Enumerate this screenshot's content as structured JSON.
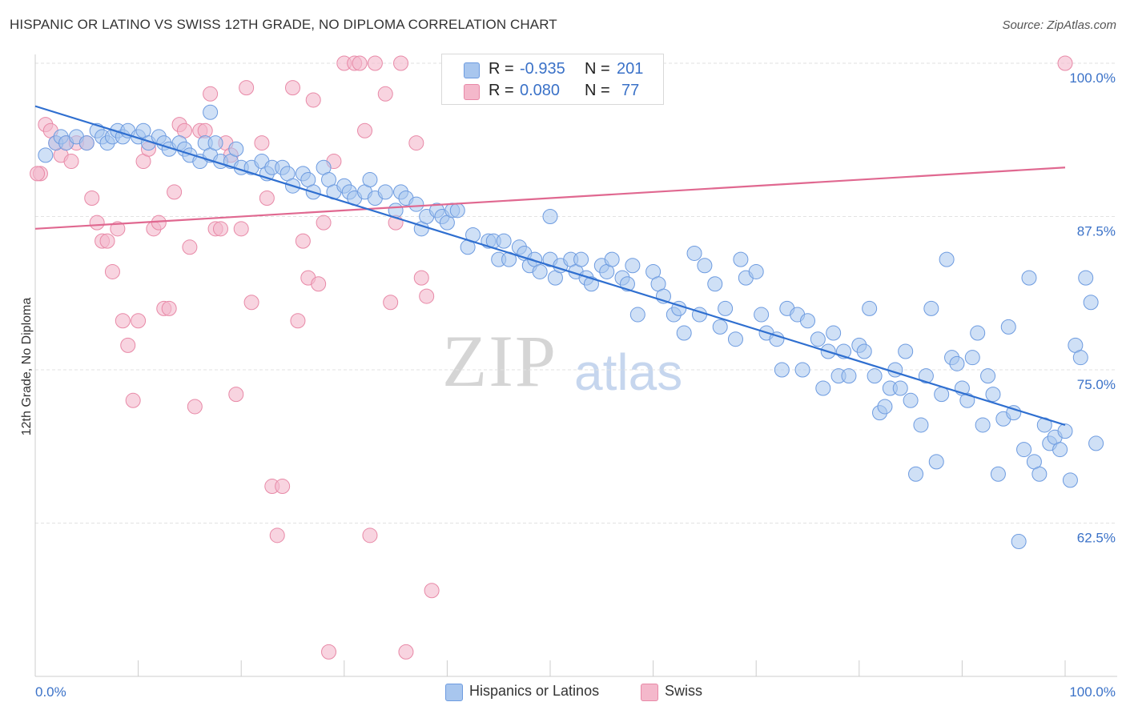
{
  "title": "HISPANIC OR LATINO VS SWISS 12TH GRADE, NO DIPLOMA CORRELATION CHART",
  "source": "Source: ZipAtlas.com",
  "watermark": {
    "zip": "ZIP",
    "atlas": "atlas"
  },
  "legend": {
    "rows": [
      {
        "r_label": "R =",
        "r_value": "-0.935",
        "n_label": "N =",
        "n_value": "201"
      },
      {
        "r_label": "R =",
        "r_value": "0.080",
        "n_label": "N =",
        "n_value": "77"
      }
    ]
  },
  "bottom_legend": {
    "series1": "Hispanics or Latinos",
    "series2": "Swiss"
  },
  "colors": {
    "blue_fill": "#a8c6ee",
    "blue_stroke": "#6d9be0",
    "blue_line": "#2f6fd0",
    "pink_fill": "#f4b8cb",
    "pink_stroke": "#e889a7",
    "pink_line": "#e06890",
    "tick_text": "#3b72c8",
    "grid": "#e2e2e2"
  },
  "chart_data": {
    "type": "scatter",
    "title": "HISPANIC OR LATINO VS SWISS 12TH GRADE, NO DIPLOMA CORRELATION CHART",
    "xlabel": "",
    "ylabel": "12th Grade, No Diploma",
    "xlim": [
      0,
      100
    ],
    "ylim": [
      50,
      100
    ],
    "x_tick_labels": [
      "0.0%",
      "100.0%"
    ],
    "y_ticks": [
      62.5,
      75.0,
      87.5,
      100.0
    ],
    "y_tick_labels": [
      "62.5%",
      "75.0%",
      "87.5%",
      "100.0%"
    ],
    "grid": true,
    "legend_position": "top-center",
    "series": [
      {
        "name": "Hispanics or Latinos",
        "color": "#a8c6ee",
        "trend": {
          "x": [
            0,
            100
          ],
          "y": [
            96.5,
            70.5
          ]
        },
        "points": [
          [
            1,
            92.5
          ],
          [
            2,
            93.5
          ],
          [
            2.5,
            94
          ],
          [
            3,
            93.5
          ],
          [
            4,
            94
          ],
          [
            5,
            93.5
          ],
          [
            6,
            94.5
          ],
          [
            6.5,
            94
          ],
          [
            7,
            93.5
          ],
          [
            7.5,
            94
          ],
          [
            8,
            94.5
          ],
          [
            8.5,
            94
          ],
          [
            9,
            94.5
          ],
          [
            10,
            94
          ],
          [
            10.5,
            94.5
          ],
          [
            11,
            93.5
          ],
          [
            12,
            94
          ],
          [
            12.5,
            93.5
          ],
          [
            13,
            93
          ],
          [
            14,
            93.5
          ],
          [
            14.5,
            93
          ],
          [
            15,
            92.5
          ],
          [
            16,
            92
          ],
          [
            16.5,
            93.5
          ],
          [
            17,
            92.5
          ],
          [
            18,
            92
          ],
          [
            19,
            92
          ],
          [
            19.5,
            93
          ],
          [
            20,
            91.5
          ],
          [
            21,
            91.5
          ],
          [
            22,
            92
          ],
          [
            22.5,
            91
          ],
          [
            23,
            91.5
          ],
          [
            24,
            91.5
          ],
          [
            24.5,
            91
          ],
          [
            25,
            90
          ],
          [
            26,
            91
          ],
          [
            26.5,
            90.5
          ],
          [
            27,
            89.5
          ],
          [
            28,
            91.5
          ],
          [
            28.5,
            90.5
          ],
          [
            29,
            89.5
          ],
          [
            30,
            90
          ],
          [
            30.5,
            89.5
          ],
          [
            31,
            89
          ],
          [
            32,
            89.5
          ],
          [
            32.5,
            90.5
          ],
          [
            33,
            89
          ],
          [
            34,
            89.5
          ],
          [
            35,
            88
          ],
          [
            35.5,
            89.5
          ],
          [
            36,
            89
          ],
          [
            37,
            88.5
          ],
          [
            37.5,
            86.5
          ],
          [
            38,
            87.5
          ],
          [
            39,
            88
          ],
          [
            39.5,
            87.5
          ],
          [
            40,
            87
          ],
          [
            40.5,
            88
          ],
          [
            41,
            88
          ],
          [
            42,
            85
          ],
          [
            42.5,
            86
          ],
          [
            44,
            85.5
          ],
          [
            44.5,
            85.5
          ],
          [
            45,
            84
          ],
          [
            45.5,
            85.5
          ],
          [
            46,
            84
          ],
          [
            47,
            85
          ],
          [
            47.5,
            84.5
          ],
          [
            48,
            83.5
          ],
          [
            48.5,
            84
          ],
          [
            49,
            83
          ],
          [
            50,
            84
          ],
          [
            50.5,
            82.5
          ],
          [
            51,
            83.5
          ],
          [
            52,
            84
          ],
          [
            52.5,
            83
          ],
          [
            53,
            84
          ],
          [
            53.5,
            82.5
          ],
          [
            54,
            82
          ],
          [
            55,
            83.5
          ],
          [
            55.5,
            83
          ],
          [
            56,
            84
          ],
          [
            57,
            82.5
          ],
          [
            57.5,
            82
          ],
          [
            58,
            83.5
          ],
          [
            58.5,
            79.5
          ],
          [
            60,
            83
          ],
          [
            60.5,
            82
          ],
          [
            61,
            81
          ],
          [
            62,
            79.5
          ],
          [
            62.5,
            80
          ],
          [
            63,
            78
          ],
          [
            64,
            84.5
          ],
          [
            64.5,
            79.5
          ],
          [
            65,
            83.5
          ],
          [
            66,
            82
          ],
          [
            66.5,
            78.5
          ],
          [
            67,
            80
          ],
          [
            68,
            77.5
          ],
          [
            68.5,
            84
          ],
          [
            69,
            82.5
          ],
          [
            70,
            83
          ],
          [
            70.5,
            79.5
          ],
          [
            71,
            78
          ],
          [
            72,
            77.5
          ],
          [
            72.5,
            75
          ],
          [
            73,
            80
          ],
          [
            74,
            79.5
          ],
          [
            74.5,
            75
          ],
          [
            75,
            79
          ],
          [
            76,
            77.5
          ],
          [
            76.5,
            73.5
          ],
          [
            77,
            76.5
          ],
          [
            77.5,
            78
          ],
          [
            78,
            74.5
          ],
          [
            78.5,
            76.5
          ],
          [
            79,
            74.5
          ],
          [
            80,
            77
          ],
          [
            80.5,
            76.5
          ],
          [
            81,
            80
          ],
          [
            81.5,
            74.5
          ],
          [
            82,
            71.5
          ],
          [
            82.5,
            72
          ],
          [
            83,
            73.5
          ],
          [
            83.5,
            75
          ],
          [
            84,
            73.5
          ],
          [
            84.5,
            76.5
          ],
          [
            85,
            72.5
          ],
          [
            85.5,
            66.5
          ],
          [
            86,
            70.5
          ],
          [
            86.5,
            74.5
          ],
          [
            87,
            80
          ],
          [
            87.5,
            67.5
          ],
          [
            88,
            73
          ],
          [
            88.5,
            84
          ],
          [
            89,
            76
          ],
          [
            89.5,
            75.5
          ],
          [
            90,
            73.5
          ],
          [
            90.5,
            72.5
          ],
          [
            91,
            76
          ],
          [
            91.5,
            78
          ],
          [
            92,
            70.5
          ],
          [
            92.5,
            74.5
          ],
          [
            93,
            73
          ],
          [
            93.5,
            66.5
          ],
          [
            94,
            71
          ],
          [
            94.5,
            78.5
          ],
          [
            95,
            71.5
          ],
          [
            95.5,
            61
          ],
          [
            96,
            68.5
          ],
          [
            96.5,
            82.5
          ],
          [
            97,
            67.5
          ],
          [
            97.5,
            66.5
          ],
          [
            98,
            70.5
          ],
          [
            98.5,
            69
          ],
          [
            99,
            69.5
          ],
          [
            99.5,
            68.5
          ],
          [
            100,
            70
          ],
          [
            100.5,
            66
          ],
          [
            101,
            77
          ],
          [
            101.5,
            76
          ],
          [
            102,
            82.5
          ],
          [
            102.5,
            80.5
          ],
          [
            103,
            69
          ],
          [
            17,
            96
          ],
          [
            50,
            87.5
          ],
          [
            17.5,
            93.5
          ]
        ]
      },
      {
        "name": "Swiss",
        "color": "#f4b8cb",
        "trend": {
          "x": [
            0,
            100
          ],
          "y": [
            86.5,
            91.5
          ]
        },
        "points": [
          [
            0.5,
            91
          ],
          [
            1,
            95
          ],
          [
            1.5,
            94.5
          ],
          [
            2,
            93.5
          ],
          [
            2.5,
            92.5
          ],
          [
            3,
            93.5
          ],
          [
            3.5,
            92
          ],
          [
            4,
            93.5
          ],
          [
            5,
            93.5
          ],
          [
            5.5,
            89
          ],
          [
            6,
            87
          ],
          [
            6.5,
            85.5
          ],
          [
            7,
            85.5
          ],
          [
            7.5,
            83
          ],
          [
            8,
            86.5
          ],
          [
            8.5,
            79
          ],
          [
            9,
            77
          ],
          [
            9.5,
            72.5
          ],
          [
            10,
            79
          ],
          [
            10.5,
            92
          ],
          [
            11,
            93
          ],
          [
            11.5,
            86.5
          ],
          [
            12,
            87
          ],
          [
            12.5,
            80
          ],
          [
            13,
            80
          ],
          [
            13.5,
            89.5
          ],
          [
            14,
            95
          ],
          [
            14.5,
            94.5
          ],
          [
            15,
            85
          ],
          [
            15.5,
            72
          ],
          [
            16,
            94.5
          ],
          [
            16.5,
            94.5
          ],
          [
            17,
            97.5
          ],
          [
            17.5,
            86.5
          ],
          [
            18,
            86.5
          ],
          [
            18.5,
            93.5
          ],
          [
            19,
            92.5
          ],
          [
            19.5,
            73
          ],
          [
            20,
            86.5
          ],
          [
            20.5,
            98
          ],
          [
            21,
            80.5
          ],
          [
            22,
            93.5
          ],
          [
            22.5,
            89
          ],
          [
            23,
            65.5
          ],
          [
            23.5,
            61.5
          ],
          [
            24,
            65.5
          ],
          [
            25,
            98
          ],
          [
            25.5,
            79
          ],
          [
            26,
            85.5
          ],
          [
            26.5,
            82.5
          ],
          [
            27,
            97
          ],
          [
            27.5,
            82
          ],
          [
            28,
            87
          ],
          [
            28.5,
            52
          ],
          [
            29,
            92
          ],
          [
            30,
            100
          ],
          [
            31,
            100
          ],
          [
            31.5,
            100
          ],
          [
            32,
            94.5
          ],
          [
            32.5,
            61.5
          ],
          [
            33,
            100
          ],
          [
            34,
            97.5
          ],
          [
            34.5,
            80.5
          ],
          [
            35,
            87
          ],
          [
            35.5,
            100
          ],
          [
            36,
            52
          ],
          [
            37,
            93.5
          ],
          [
            37.5,
            82.5
          ],
          [
            38,
            81
          ],
          [
            38.5,
            57
          ],
          [
            100,
            100
          ],
          [
            0.2,
            91
          ]
        ]
      }
    ]
  }
}
